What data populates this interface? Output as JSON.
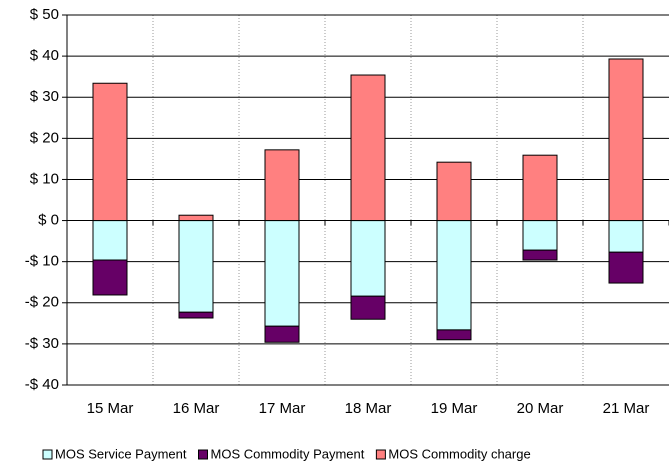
{
  "chart_data": {
    "type": "stacked-bar",
    "categories": [
      "15 Mar",
      "16 Mar",
      "17 Mar",
      "18 Mar",
      "19 Mar",
      "20 Mar",
      "21 Mar"
    ],
    "series": [
      {
        "name": "MOS Service Payment",
        "color": "#ccffff",
        "values": [
          -9.6,
          -22.3,
          -25.7,
          -18.4,
          -26.6,
          -7.2,
          -7.7
        ]
      },
      {
        "name": "MOS Commodity Payment",
        "color": "#660066",
        "values": [
          -8.5,
          -1.4,
          -3.9,
          -5.6,
          -2.4,
          -2.4,
          -7.5
        ]
      },
      {
        "name": "MOS Commodity charge",
        "color": "#ff8080",
        "values": [
          33.4,
          1.3,
          17.2,
          35.4,
          14.2,
          15.9,
          39.3
        ]
      }
    ],
    "ylim": [
      -40,
      50
    ],
    "yticks": [
      {
        "value": -40,
        "label": "-$ 40"
      },
      {
        "value": -30,
        "label": "-$ 30"
      },
      {
        "value": -20,
        "label": "-$ 20"
      },
      {
        "value": -10,
        "label": "-$ 10"
      },
      {
        "value": 0,
        "label": "$ 0"
      },
      {
        "value": 10,
        "label": "$ 10"
      },
      {
        "value": 20,
        "label": "$ 20"
      },
      {
        "value": 30,
        "label": "$ 30"
      },
      {
        "value": 40,
        "label": "$ 40"
      },
      {
        "value": 50,
        "label": "$ 50"
      }
    ],
    "grid": true,
    "legend": "bottom"
  }
}
